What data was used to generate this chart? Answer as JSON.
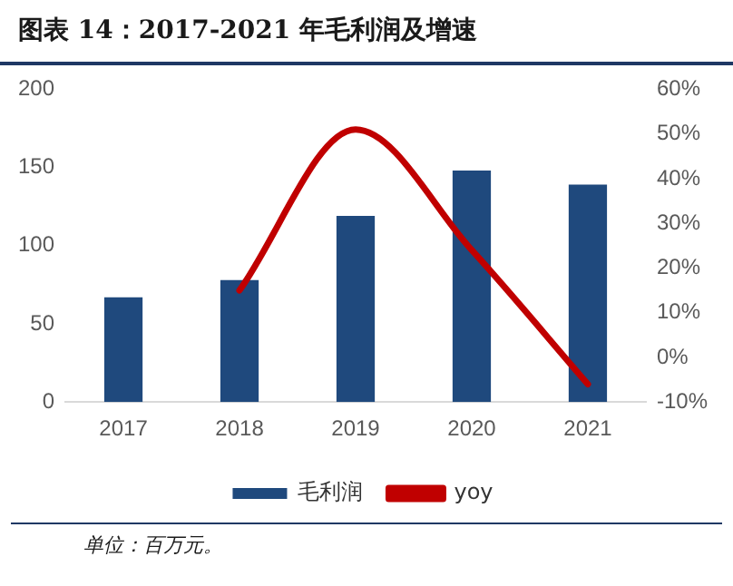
{
  "chart_data": {
    "type": "bar",
    "title": "图表 14：2017-2021 年毛利润及增速",
    "categories": [
      "2017",
      "2018",
      "2019",
      "2020",
      "2021"
    ],
    "series": [
      {
        "name": "毛利润",
        "color": "#1f497d",
        "values": [
          67,
          78,
          119,
          148,
          139
        ]
      },
      {
        "name": "yoy",
        "type": "line",
        "color": "#c00000",
        "axis": "y2",
        "values": [
          null,
          15,
          51,
          24,
          -6
        ]
      }
    ],
    "ylim": [
      0,
      200
    ],
    "yticks": [
      0,
      50,
      100,
      150,
      200
    ],
    "y2lim": [
      -10,
      60
    ],
    "y2ticks": [
      {
        "value": -10,
        "label": "-10%"
      },
      {
        "value": 0,
        "label": "0%"
      },
      {
        "value": 10,
        "label": "10%"
      },
      {
        "value": 20,
        "label": "20%"
      },
      {
        "value": 30,
        "label": "30%"
      },
      {
        "value": 40,
        "label": "40%"
      },
      {
        "value": 50,
        "label": "50%"
      },
      {
        "value": 60,
        "label": "60%"
      }
    ],
    "grid": false,
    "legend": "bottom",
    "marker": "none",
    "line_style": "solid",
    "annotations": [
      "单位：百万元。"
    ]
  }
}
